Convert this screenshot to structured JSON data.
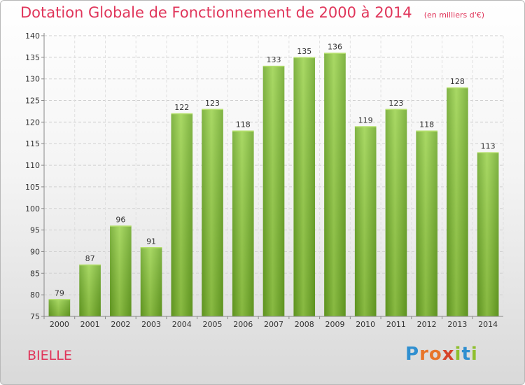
{
  "chart_data": {
    "type": "bar",
    "title": "Dotation Globale de Fonctionnement de 2000 à 2014",
    "unit": "(en milliers d'€)",
    "categories": [
      "2000",
      "2001",
      "2002",
      "2003",
      "2004",
      "2005",
      "2006",
      "2007",
      "2008",
      "2009",
      "2010",
      "2011",
      "2012",
      "2013",
      "2014"
    ],
    "values": [
      79,
      87,
      96,
      91,
      122,
      123,
      118,
      133,
      135,
      136,
      119,
      123,
      118,
      128,
      113
    ],
    "ylim": [
      75,
      140
    ],
    "yticks": [
      75,
      80,
      85,
      90,
      95,
      100,
      105,
      110,
      115,
      120,
      125,
      130,
      135,
      140
    ],
    "grid": true,
    "bar_color": "#7dba2c",
    "title_color": "#e0355a"
  },
  "commune": "BIELLE",
  "logo": {
    "letters": [
      "P",
      "r",
      "o",
      "x",
      "i",
      "t",
      "i"
    ]
  }
}
